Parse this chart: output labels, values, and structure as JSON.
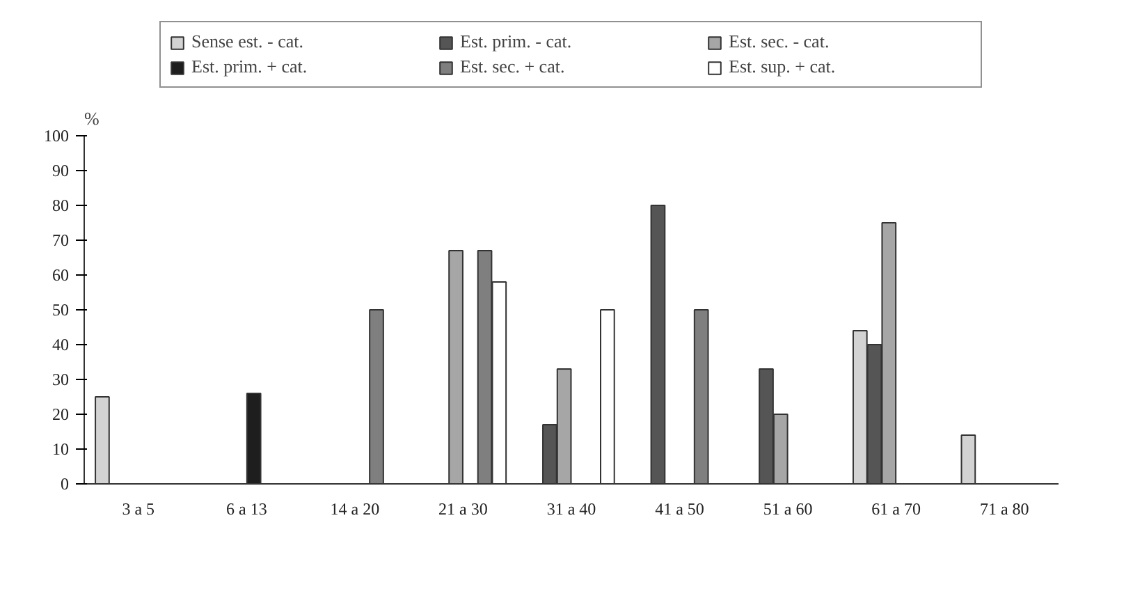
{
  "chart_data": {
    "type": "bar",
    "ylabel": "%",
    "categories": [
      "3 a 5",
      "6 a 13",
      "14 a 20",
      "21 a 30",
      "31 a 40",
      "41 a 50",
      "51 a 60",
      "61 a 70",
      "71 a 80"
    ],
    "series": [
      {
        "name": "Sense est. - cat.",
        "color": "#d3d3d3",
        "values": [
          25,
          null,
          null,
          null,
          null,
          null,
          null,
          44,
          14
        ]
      },
      {
        "name": "Est. prim. - cat.",
        "color": "#555555",
        "values": [
          null,
          null,
          null,
          null,
          17,
          80,
          33,
          40,
          null
        ]
      },
      {
        "name": "Est. sec. - cat.",
        "color": "#a6a6a6",
        "values": [
          null,
          null,
          null,
          67,
          33,
          null,
          20,
          75,
          null
        ]
      },
      {
        "name": "Est. prim. + cat.",
        "color": "#1e1e1e",
        "values": [
          null,
          26,
          null,
          null,
          null,
          null,
          null,
          null,
          null
        ]
      },
      {
        "name": "Est. sec. + cat.",
        "color": "#7f7f7f",
        "values": [
          null,
          null,
          50,
          67,
          null,
          50,
          null,
          null,
          null
        ]
      },
      {
        "name": "Est. sup. + cat.",
        "color": "#ffffff",
        "values": [
          null,
          null,
          null,
          58,
          50,
          null,
          null,
          null,
          null
        ]
      }
    ],
    "ylim": [
      0,
      100
    ],
    "yticks": [
      0,
      10,
      20,
      30,
      40,
      50,
      60,
      70,
      80,
      90,
      100
    ],
    "grid": false,
    "legend": "top"
  }
}
